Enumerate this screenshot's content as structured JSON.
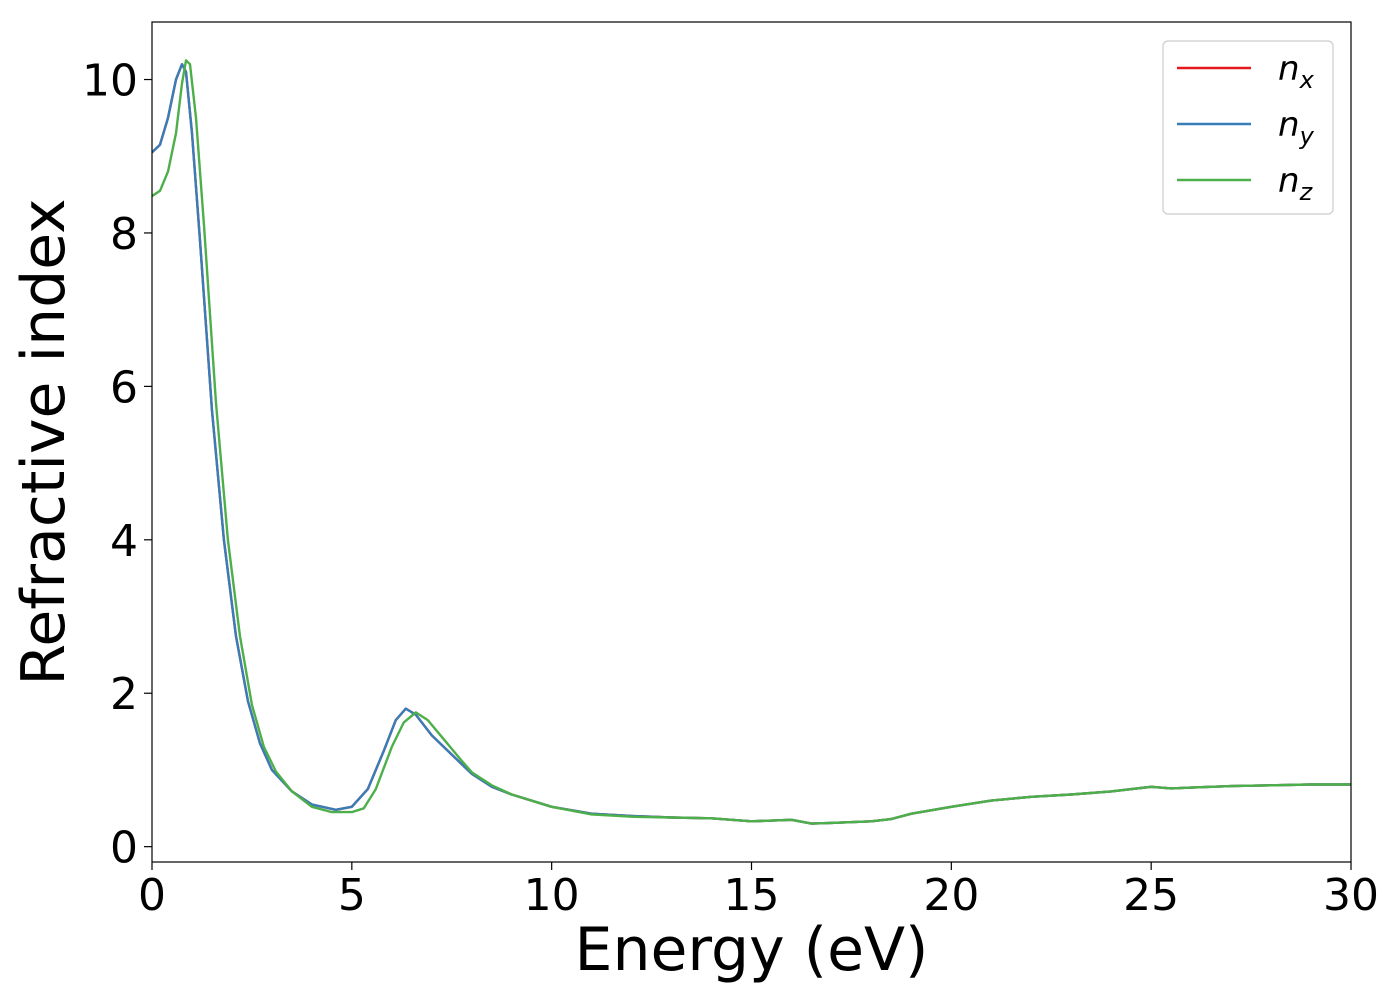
{
  "chart_data": {
    "type": "line",
    "title": "",
    "xlabel": "Energy (eV)",
    "ylabel": "Refractive index",
    "xlim": [
      0,
      30
    ],
    "ylim": [
      -0.2,
      10.75
    ],
    "xticks": [
      0,
      5,
      10,
      15,
      20,
      25,
      30
    ],
    "yticks": [
      0,
      2,
      4,
      6,
      8,
      10
    ],
    "xtick_labels": [
      "0",
      "5",
      "10",
      "15",
      "20",
      "25",
      "30"
    ],
    "ytick_labels": [
      "0",
      "2",
      "4",
      "6",
      "8",
      "10"
    ],
    "grid": false,
    "legend_position": "top-right",
    "series": [
      {
        "name": "n_x",
        "legend_base": "n",
        "legend_sub": "x",
        "color": "#e41a1c",
        "points": [
          [
            0,
            9.05
          ],
          [
            0.2,
            9.15
          ],
          [
            0.4,
            9.5
          ],
          [
            0.6,
            10.0
          ],
          [
            0.75,
            10.2
          ],
          [
            0.85,
            10.1
          ],
          [
            1.0,
            9.3
          ],
          [
            1.2,
            7.9
          ],
          [
            1.5,
            5.7
          ],
          [
            1.8,
            4.0
          ],
          [
            2.1,
            2.75
          ],
          [
            2.4,
            1.9
          ],
          [
            2.7,
            1.35
          ],
          [
            3.0,
            1.0
          ],
          [
            3.5,
            0.72
          ],
          [
            4.0,
            0.55
          ],
          [
            4.6,
            0.48
          ],
          [
            5.0,
            0.52
          ],
          [
            5.4,
            0.75
          ],
          [
            5.8,
            1.25
          ],
          [
            6.1,
            1.65
          ],
          [
            6.35,
            1.8
          ],
          [
            6.6,
            1.72
          ],
          [
            7.0,
            1.45
          ],
          [
            7.5,
            1.2
          ],
          [
            8.0,
            0.95
          ],
          [
            8.5,
            0.78
          ],
          [
            9.0,
            0.68
          ],
          [
            10.0,
            0.52
          ],
          [
            11.0,
            0.43
          ],
          [
            12.0,
            0.4
          ],
          [
            13.0,
            0.38
          ],
          [
            14.0,
            0.37
          ],
          [
            15.0,
            0.33
          ],
          [
            16.0,
            0.35
          ],
          [
            16.5,
            0.3
          ],
          [
            17.0,
            0.31
          ],
          [
            18.0,
            0.33
          ],
          [
            18.5,
            0.36
          ],
          [
            19.0,
            0.43
          ],
          [
            20.0,
            0.52
          ],
          [
            21.0,
            0.6
          ],
          [
            22.0,
            0.65
          ],
          [
            23.0,
            0.68
          ],
          [
            24.0,
            0.72
          ],
          [
            25.0,
            0.78
          ],
          [
            25.5,
            0.76
          ],
          [
            26.0,
            0.77
          ],
          [
            27.0,
            0.79
          ],
          [
            28.0,
            0.8
          ],
          [
            29.0,
            0.81
          ],
          [
            30.0,
            0.81
          ]
        ]
      },
      {
        "name": "n_y",
        "legend_base": "n",
        "legend_sub": "y",
        "color": "#377eb8",
        "points": [
          [
            0,
            9.05
          ],
          [
            0.2,
            9.15
          ],
          [
            0.4,
            9.5
          ],
          [
            0.6,
            10.0
          ],
          [
            0.75,
            10.2
          ],
          [
            0.85,
            10.1
          ],
          [
            1.0,
            9.3
          ],
          [
            1.2,
            7.9
          ],
          [
            1.5,
            5.7
          ],
          [
            1.8,
            4.0
          ],
          [
            2.1,
            2.75
          ],
          [
            2.4,
            1.9
          ],
          [
            2.7,
            1.35
          ],
          [
            3.0,
            1.0
          ],
          [
            3.5,
            0.72
          ],
          [
            4.0,
            0.55
          ],
          [
            4.6,
            0.48
          ],
          [
            5.0,
            0.52
          ],
          [
            5.4,
            0.75
          ],
          [
            5.8,
            1.25
          ],
          [
            6.1,
            1.65
          ],
          [
            6.35,
            1.8
          ],
          [
            6.6,
            1.72
          ],
          [
            7.0,
            1.45
          ],
          [
            7.5,
            1.2
          ],
          [
            8.0,
            0.95
          ],
          [
            8.5,
            0.78
          ],
          [
            9.0,
            0.68
          ],
          [
            10.0,
            0.52
          ],
          [
            11.0,
            0.43
          ],
          [
            12.0,
            0.4
          ],
          [
            13.0,
            0.38
          ],
          [
            14.0,
            0.37
          ],
          [
            15.0,
            0.33
          ],
          [
            16.0,
            0.35
          ],
          [
            16.5,
            0.3
          ],
          [
            17.0,
            0.31
          ],
          [
            18.0,
            0.33
          ],
          [
            18.5,
            0.36
          ],
          [
            19.0,
            0.43
          ],
          [
            20.0,
            0.52
          ],
          [
            21.0,
            0.6
          ],
          [
            22.0,
            0.65
          ],
          [
            23.0,
            0.68
          ],
          [
            24.0,
            0.72
          ],
          [
            25.0,
            0.78
          ],
          [
            25.5,
            0.76
          ],
          [
            26.0,
            0.77
          ],
          [
            27.0,
            0.79
          ],
          [
            28.0,
            0.8
          ],
          [
            29.0,
            0.81
          ],
          [
            30.0,
            0.81
          ]
        ]
      },
      {
        "name": "n_z",
        "legend_base": "n",
        "legend_sub": "z",
        "color": "#4daf4a",
        "points": [
          [
            0,
            8.48
          ],
          [
            0.2,
            8.55
          ],
          [
            0.4,
            8.8
          ],
          [
            0.6,
            9.3
          ],
          [
            0.75,
            9.95
          ],
          [
            0.85,
            10.25
          ],
          [
            0.95,
            10.2
          ],
          [
            1.1,
            9.5
          ],
          [
            1.3,
            8.1
          ],
          [
            1.6,
            5.8
          ],
          [
            1.9,
            4.0
          ],
          [
            2.2,
            2.75
          ],
          [
            2.5,
            1.85
          ],
          [
            2.8,
            1.3
          ],
          [
            3.1,
            0.98
          ],
          [
            3.5,
            0.72
          ],
          [
            4.0,
            0.52
          ],
          [
            4.5,
            0.45
          ],
          [
            5.0,
            0.45
          ],
          [
            5.3,
            0.5
          ],
          [
            5.6,
            0.75
          ],
          [
            6.0,
            1.3
          ],
          [
            6.3,
            1.62
          ],
          [
            6.6,
            1.75
          ],
          [
            6.9,
            1.65
          ],
          [
            7.3,
            1.4
          ],
          [
            7.7,
            1.15
          ],
          [
            8.0,
            0.97
          ],
          [
            8.5,
            0.8
          ],
          [
            9.0,
            0.68
          ],
          [
            10.0,
            0.52
          ],
          [
            11.0,
            0.42
          ],
          [
            12.0,
            0.39
          ],
          [
            13.0,
            0.38
          ],
          [
            14.0,
            0.37
          ],
          [
            15.0,
            0.33
          ],
          [
            16.0,
            0.35
          ],
          [
            16.5,
            0.3
          ],
          [
            17.0,
            0.31
          ],
          [
            18.0,
            0.33
          ],
          [
            18.5,
            0.36
          ],
          [
            19.0,
            0.43
          ],
          [
            20.0,
            0.52
          ],
          [
            21.0,
            0.6
          ],
          [
            22.0,
            0.65
          ],
          [
            23.0,
            0.68
          ],
          [
            24.0,
            0.72
          ],
          [
            25.0,
            0.78
          ],
          [
            25.5,
            0.76
          ],
          [
            26.0,
            0.77
          ],
          [
            27.0,
            0.79
          ],
          [
            28.0,
            0.8
          ],
          [
            29.0,
            0.81
          ],
          [
            30.0,
            0.81
          ]
        ]
      }
    ]
  }
}
